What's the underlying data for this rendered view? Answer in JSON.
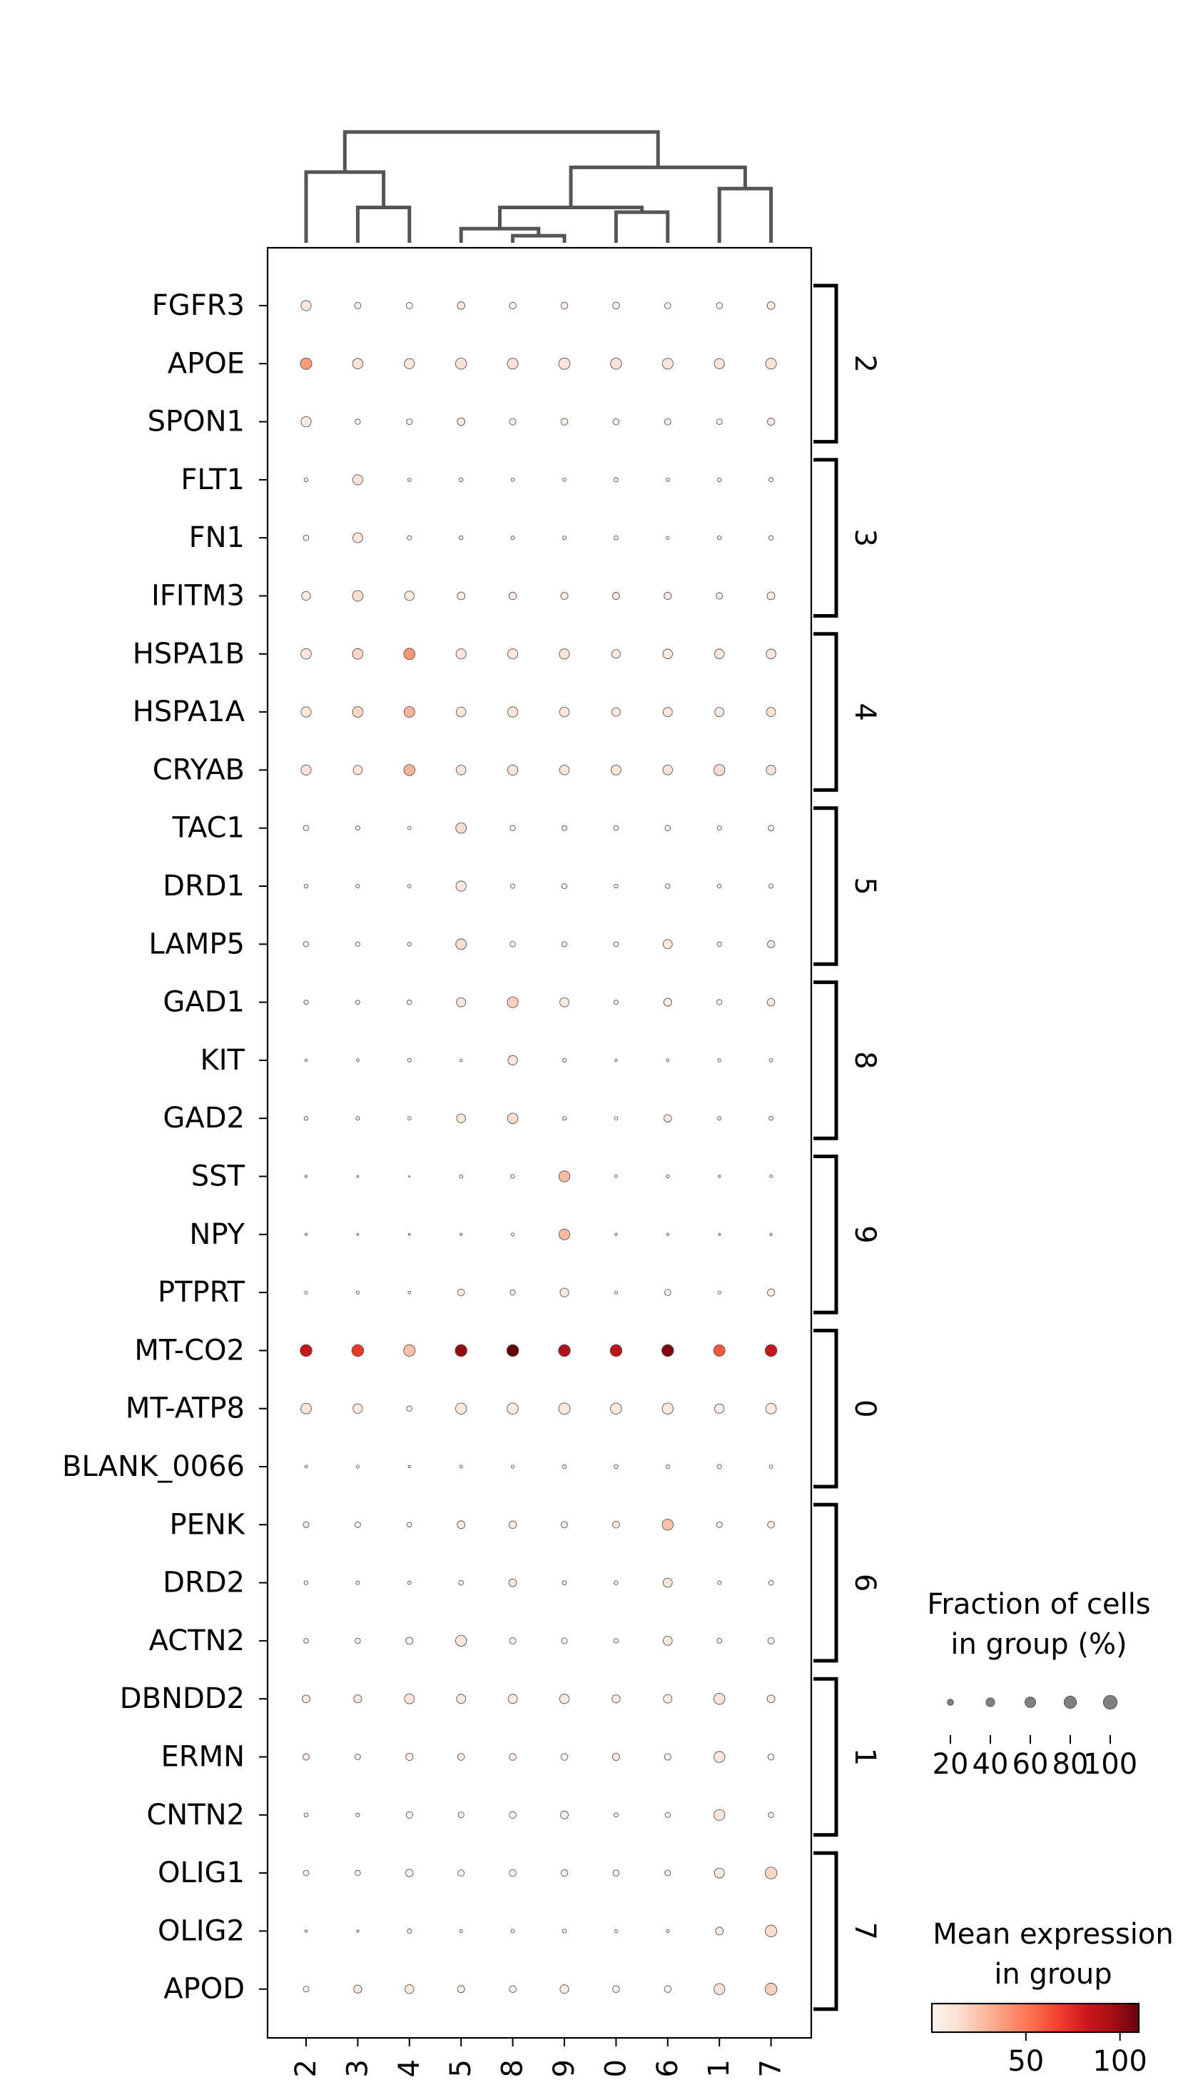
{
  "chart_data": {
    "type": "dotplot",
    "groups": [
      "2",
      "3",
      "4",
      "5",
      "8",
      "9",
      "0",
      "6",
      "1",
      "7"
    ],
    "genes": [
      "FGFR3",
      "APOE",
      "SPON1",
      "FLT1",
      "FN1",
      "IFITM3",
      "HSPA1B",
      "HSPA1A",
      "CRYAB",
      "TAC1",
      "DRD1",
      "LAMP5",
      "GAD1",
      "KIT",
      "GAD2",
      "SST",
      "NPY",
      "PTPRT",
      "MT-CO2",
      "MT-ATP8",
      "BLANK_0066",
      "PENK",
      "DRD2",
      "ACTN2",
      "DBNDD2",
      "ERMN",
      "CNTN2",
      "OLIG1",
      "OLIG2",
      "APOD"
    ],
    "gene_groups": [
      {
        "label": "2",
        "genes": [
          "FGFR3",
          "APOE",
          "SPON1"
        ]
      },
      {
        "label": "3",
        "genes": [
          "FLT1",
          "FN1",
          "IFITM3"
        ]
      },
      {
        "label": "4",
        "genes": [
          "HSPA1B",
          "HSPA1A",
          "CRYAB"
        ]
      },
      {
        "label": "5",
        "genes": [
          "TAC1",
          "DRD1",
          "LAMP5"
        ]
      },
      {
        "label": "8",
        "genes": [
          "GAD1",
          "KIT",
          "GAD2"
        ]
      },
      {
        "label": "9",
        "genes": [
          "SST",
          "NPY",
          "PTPRT"
        ]
      },
      {
        "label": "0",
        "genes": [
          "MT-CO2",
          "MT-ATP8",
          "BLANK_0066"
        ]
      },
      {
        "label": "6",
        "genes": [
          "PENK",
          "DRD2",
          "ACTN2"
        ]
      },
      {
        "label": "1",
        "genes": [
          "DBNDD2",
          "ERMN",
          "CNTN2"
        ]
      },
      {
        "label": "7",
        "genes": [
          "OLIG1",
          "OLIG2",
          "APOD"
        ]
      }
    ],
    "fraction_pct": [
      [
        55,
        22,
        22,
        30,
        25,
        25,
        25,
        20,
        20,
        32
      ],
      [
        70,
        58,
        55,
        65,
        62,
        68,
        65,
        62,
        55,
        62
      ],
      [
        55,
        15,
        18,
        32,
        22,
        25,
        20,
        22,
        17,
        28
      ],
      [
        8,
        55,
        6,
        8,
        6,
        6,
        10,
        6,
        8,
        10
      ],
      [
        16,
        52,
        10,
        8,
        7,
        7,
        9,
        5,
        8,
        11
      ],
      [
        42,
        60,
        48,
        32,
        30,
        28,
        27,
        28,
        22,
        32
      ],
      [
        58,
        60,
        68,
        55,
        55,
        55,
        40,
        50,
        50,
        50
      ],
      [
        55,
        60,
        62,
        50,
        55,
        50,
        38,
        45,
        45,
        45
      ],
      [
        55,
        45,
        65,
        50,
        55,
        50,
        52,
        50,
        65,
        48
      ],
      [
        15,
        10,
        6,
        60,
        15,
        13,
        12,
        16,
        10,
        17
      ],
      [
        8,
        7,
        6,
        55,
        10,
        14,
        8,
        12,
        8,
        10
      ],
      [
        15,
        10,
        8,
        60,
        15,
        13,
        12,
        45,
        11,
        28
      ],
      [
        10,
        9,
        12,
        45,
        62,
        45,
        11,
        33,
        15,
        30
      ],
      [
        3,
        4,
        7,
        4,
        48,
        8,
        3,
        4,
        5,
        6
      ],
      [
        8,
        7,
        6,
        42,
        58,
        7,
        6,
        30,
        7,
        9
      ],
      [
        3,
        2,
        1,
        6,
        8,
        65,
        4,
        5,
        3,
        4
      ],
      [
        3,
        2,
        2,
        3,
        5,
        63,
        3,
        3,
        2,
        3
      ],
      [
        5,
        5,
        4,
        25,
        15,
        40,
        5,
        20,
        5,
        28
      ],
      [
        75,
        75,
        70,
        75,
        75,
        75,
        75,
        75,
        70,
        75
      ],
      [
        60,
        48,
        15,
        65,
        65,
        68,
        65,
        65,
        48,
        60
      ],
      [
        4,
        5,
        3,
        5,
        5,
        8,
        8,
        7,
        10,
        6
      ],
      [
        18,
        17,
        12,
        32,
        30,
        22,
        25,
        65,
        17,
        25
      ],
      [
        8,
        7,
        6,
        12,
        32,
        9,
        8,
        44,
        7,
        12
      ],
      [
        12,
        15,
        27,
        65,
        22,
        18,
        11,
        44,
        12,
        22
      ],
      [
        32,
        33,
        52,
        45,
        45,
        48,
        35,
        38,
        65,
        32
      ],
      [
        22,
        17,
        28,
        25,
        25,
        25,
        28,
        23,
        65,
        20
      ],
      [
        9,
        7,
        23,
        18,
        25,
        32,
        10,
        14,
        63,
        15
      ],
      [
        17,
        15,
        30,
        22,
        25,
        25,
        20,
        18,
        52,
        75
      ],
      [
        3,
        3,
        10,
        5,
        7,
        8,
        5,
        5,
        32,
        72
      ],
      [
        18,
        35,
        42,
        27,
        25,
        40,
        25,
        25,
        65,
        75
      ]
    ],
    "mean_expression": [
      [
        10,
        3,
        3,
        7,
        5,
        5,
        5,
        3,
        3,
        8
      ],
      [
        38,
        12,
        10,
        12,
        12,
        10,
        12,
        10,
        10,
        12
      ],
      [
        8,
        3,
        3,
        5,
        4,
        4,
        4,
        3,
        3,
        5
      ],
      [
        2,
        12,
        2,
        2,
        2,
        2,
        2,
        2,
        2,
        2
      ],
      [
        2,
        10,
        2,
        2,
        2,
        2,
        2,
        2,
        2,
        2
      ],
      [
        8,
        15,
        8,
        5,
        5,
        5,
        5,
        5,
        5,
        5
      ],
      [
        10,
        18,
        40,
        10,
        10,
        10,
        7,
        8,
        8,
        10
      ],
      [
        10,
        18,
        30,
        10,
        10,
        10,
        7,
        8,
        8,
        10
      ],
      [
        12,
        10,
        30,
        10,
        10,
        10,
        10,
        10,
        15,
        10
      ],
      [
        2,
        2,
        2,
        15,
        2,
        2,
        2,
        2,
        2,
        2
      ],
      [
        2,
        2,
        2,
        10,
        2,
        2,
        2,
        2,
        2,
        2
      ],
      [
        2,
        2,
        2,
        15,
        2,
        2,
        2,
        8,
        2,
        5
      ],
      [
        2,
        2,
        2,
        10,
        20,
        8,
        2,
        5,
        2,
        5
      ],
      [
        2,
        2,
        2,
        2,
        10,
        2,
        2,
        2,
        2,
        2
      ],
      [
        2,
        2,
        2,
        8,
        15,
        2,
        2,
        5,
        2,
        2
      ],
      [
        2,
        2,
        2,
        2,
        2,
        28,
        2,
        2,
        2,
        2
      ],
      [
        2,
        2,
        2,
        2,
        2,
        28,
        2,
        2,
        2,
        2
      ],
      [
        2,
        2,
        2,
        5,
        2,
        8,
        2,
        2,
        2,
        5
      ],
      [
        85,
        70,
        25,
        100,
        110,
        92,
        88,
        105,
        60,
        85
      ],
      [
        10,
        7,
        2,
        8,
        8,
        8,
        8,
        8,
        5,
        7
      ],
      [
        2,
        2,
        2,
        2,
        2,
        2,
        2,
        2,
        2,
        2
      ],
      [
        5,
        2,
        2,
        5,
        5,
        2,
        5,
        25,
        2,
        5
      ],
      [
        2,
        2,
        2,
        2,
        8,
        2,
        2,
        10,
        2,
        2
      ],
      [
        2,
        2,
        2,
        10,
        2,
        2,
        2,
        8,
        2,
        2
      ],
      [
        7,
        7,
        10,
        8,
        8,
        8,
        5,
        7,
        12,
        5
      ],
      [
        5,
        2,
        5,
        2,
        5,
        2,
        5,
        2,
        10,
        2
      ],
      [
        2,
        2,
        2,
        2,
        2,
        2,
        2,
        2,
        10,
        2
      ],
      [
        2,
        2,
        2,
        2,
        2,
        2,
        2,
        2,
        8,
        18
      ],
      [
        2,
        2,
        2,
        2,
        2,
        2,
        2,
        2,
        5,
        15
      ],
      [
        2,
        8,
        8,
        2,
        2,
        5,
        2,
        2,
        12,
        20
      ]
    ],
    "size_legend": {
      "title_lines": [
        "Fraction of cells",
        "in group (%)"
      ],
      "values": [
        20,
        40,
        60,
        80,
        100
      ],
      "tick_labels": [
        "20",
        "40",
        "60",
        "80",
        "100"
      ]
    },
    "color_legend": {
      "title_lines": [
        "Mean expression",
        "in group"
      ],
      "min": 0,
      "max": 110,
      "ticks": [
        50,
        100
      ],
      "tick_labels": [
        "50",
        "100"
      ],
      "colormap": "Reds",
      "colors": [
        "#fff5f0",
        "#fee0d2",
        "#fcbba1",
        "#fc9272",
        "#fb6a4a",
        "#ef3b2c",
        "#cb181d",
        "#a50f15",
        "#67000d"
      ]
    },
    "dendrogram": {
      "leaf_order": [
        "2",
        "3",
        "4",
        "5",
        "8",
        "9",
        "0",
        "6",
        "1",
        "7"
      ],
      "links": [
        {
          "a": "3",
          "b": "4",
          "h": 0.15
        },
        {
          "a": "2",
          "b": "3-4",
          "h": 0.3
        },
        {
          "a": "8",
          "b": "9",
          "h": 0.03
        },
        {
          "a": "0",
          "b": "6",
          "h": 0.13
        },
        {
          "a": "5",
          "b": "8-9",
          "h": 0.06
        },
        {
          "a": "5-8-9",
          "b": "0-6",
          "h": 0.15
        },
        {
          "a": "1",
          "b": "7",
          "h": 0.23
        },
        {
          "a": "5-8-9-0-6",
          "b": "1-7",
          "h": 0.32
        },
        {
          "a": "2-3-4",
          "b": "5-8-9-0-6-1-7",
          "h": 0.47
        }
      ],
      "color": "#555555"
    }
  }
}
